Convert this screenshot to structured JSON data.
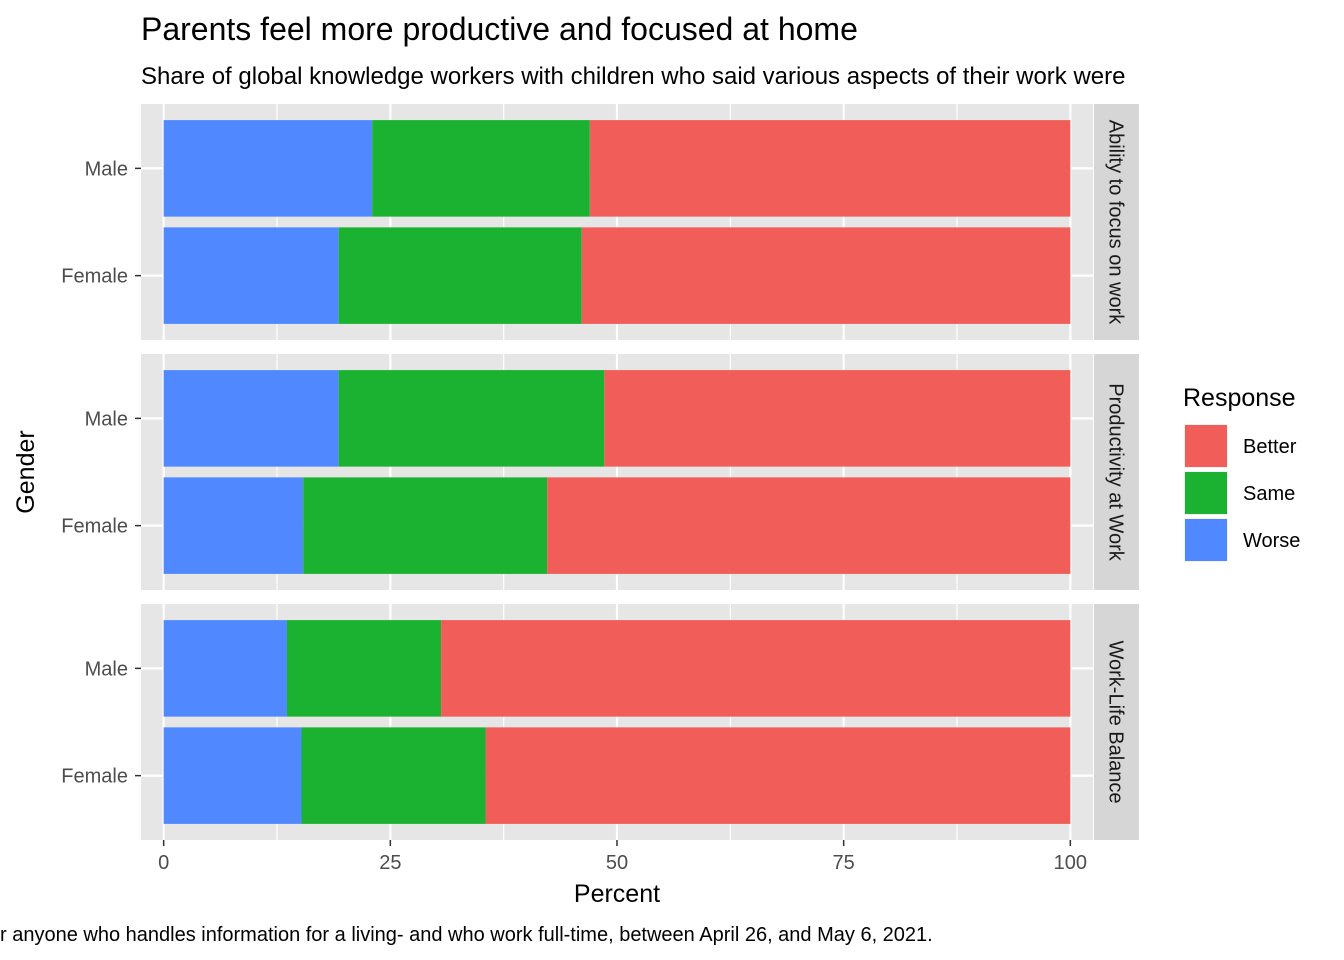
{
  "chart_data": {
    "type": "bar",
    "orientation": "horizontal",
    "stacked": true,
    "title": "Parents feel more productive and focused at home",
    "subtitle": "Share of global knowledge workers with children who said various aspects of their work were",
    "xlabel": "Percent",
    "ylabel": "Gender",
    "caption": "r anyone who handles information for a living- and who work full-time, between April 26, and May 6, 2021.",
    "xlim": [
      -2.5,
      102.5
    ],
    "x_ticks": [
      0,
      25,
      50,
      75,
      100
    ],
    "x_tick_labels": [
      "0",
      "25",
      "50",
      "75",
      "100"
    ],
    "categories": [
      "Male",
      "Female"
    ],
    "legend": {
      "title": "Response",
      "position": "right",
      "items": [
        "Better",
        "Same",
        "Worse"
      ]
    },
    "colors": {
      "Better": "#F15E5A",
      "Same": "#1BB232",
      "Worse": "#5089FF",
      "panel": "#E6E6E6",
      "strip": "#D6D6D6",
      "grid": "#FFFFFF"
    },
    "facets": [
      {
        "label": "Ability to focus on work",
        "series": [
          {
            "name": "Worse",
            "values": [
              23,
              19.3
            ]
          },
          {
            "name": "Same",
            "values": [
              24,
              26.8
            ]
          },
          {
            "name": "Better",
            "values": [
              53,
              53.9
            ]
          }
        ]
      },
      {
        "label": "Productivity at Work",
        "series": [
          {
            "name": "Worse",
            "values": [
              19.3,
              15.4
            ]
          },
          {
            "name": "Same",
            "values": [
              29.3,
              26.9
            ]
          },
          {
            "name": "Better",
            "values": [
              51.4,
              57.7
            ]
          }
        ]
      },
      {
        "label": "Work-Life Balance",
        "series": [
          {
            "name": "Worse",
            "values": [
              13.6,
              15.2
            ]
          },
          {
            "name": "Same",
            "values": [
              17,
              20.3
            ]
          },
          {
            "name": "Better",
            "values": [
              69.4,
              64.5
            ]
          }
        ]
      }
    ]
  }
}
